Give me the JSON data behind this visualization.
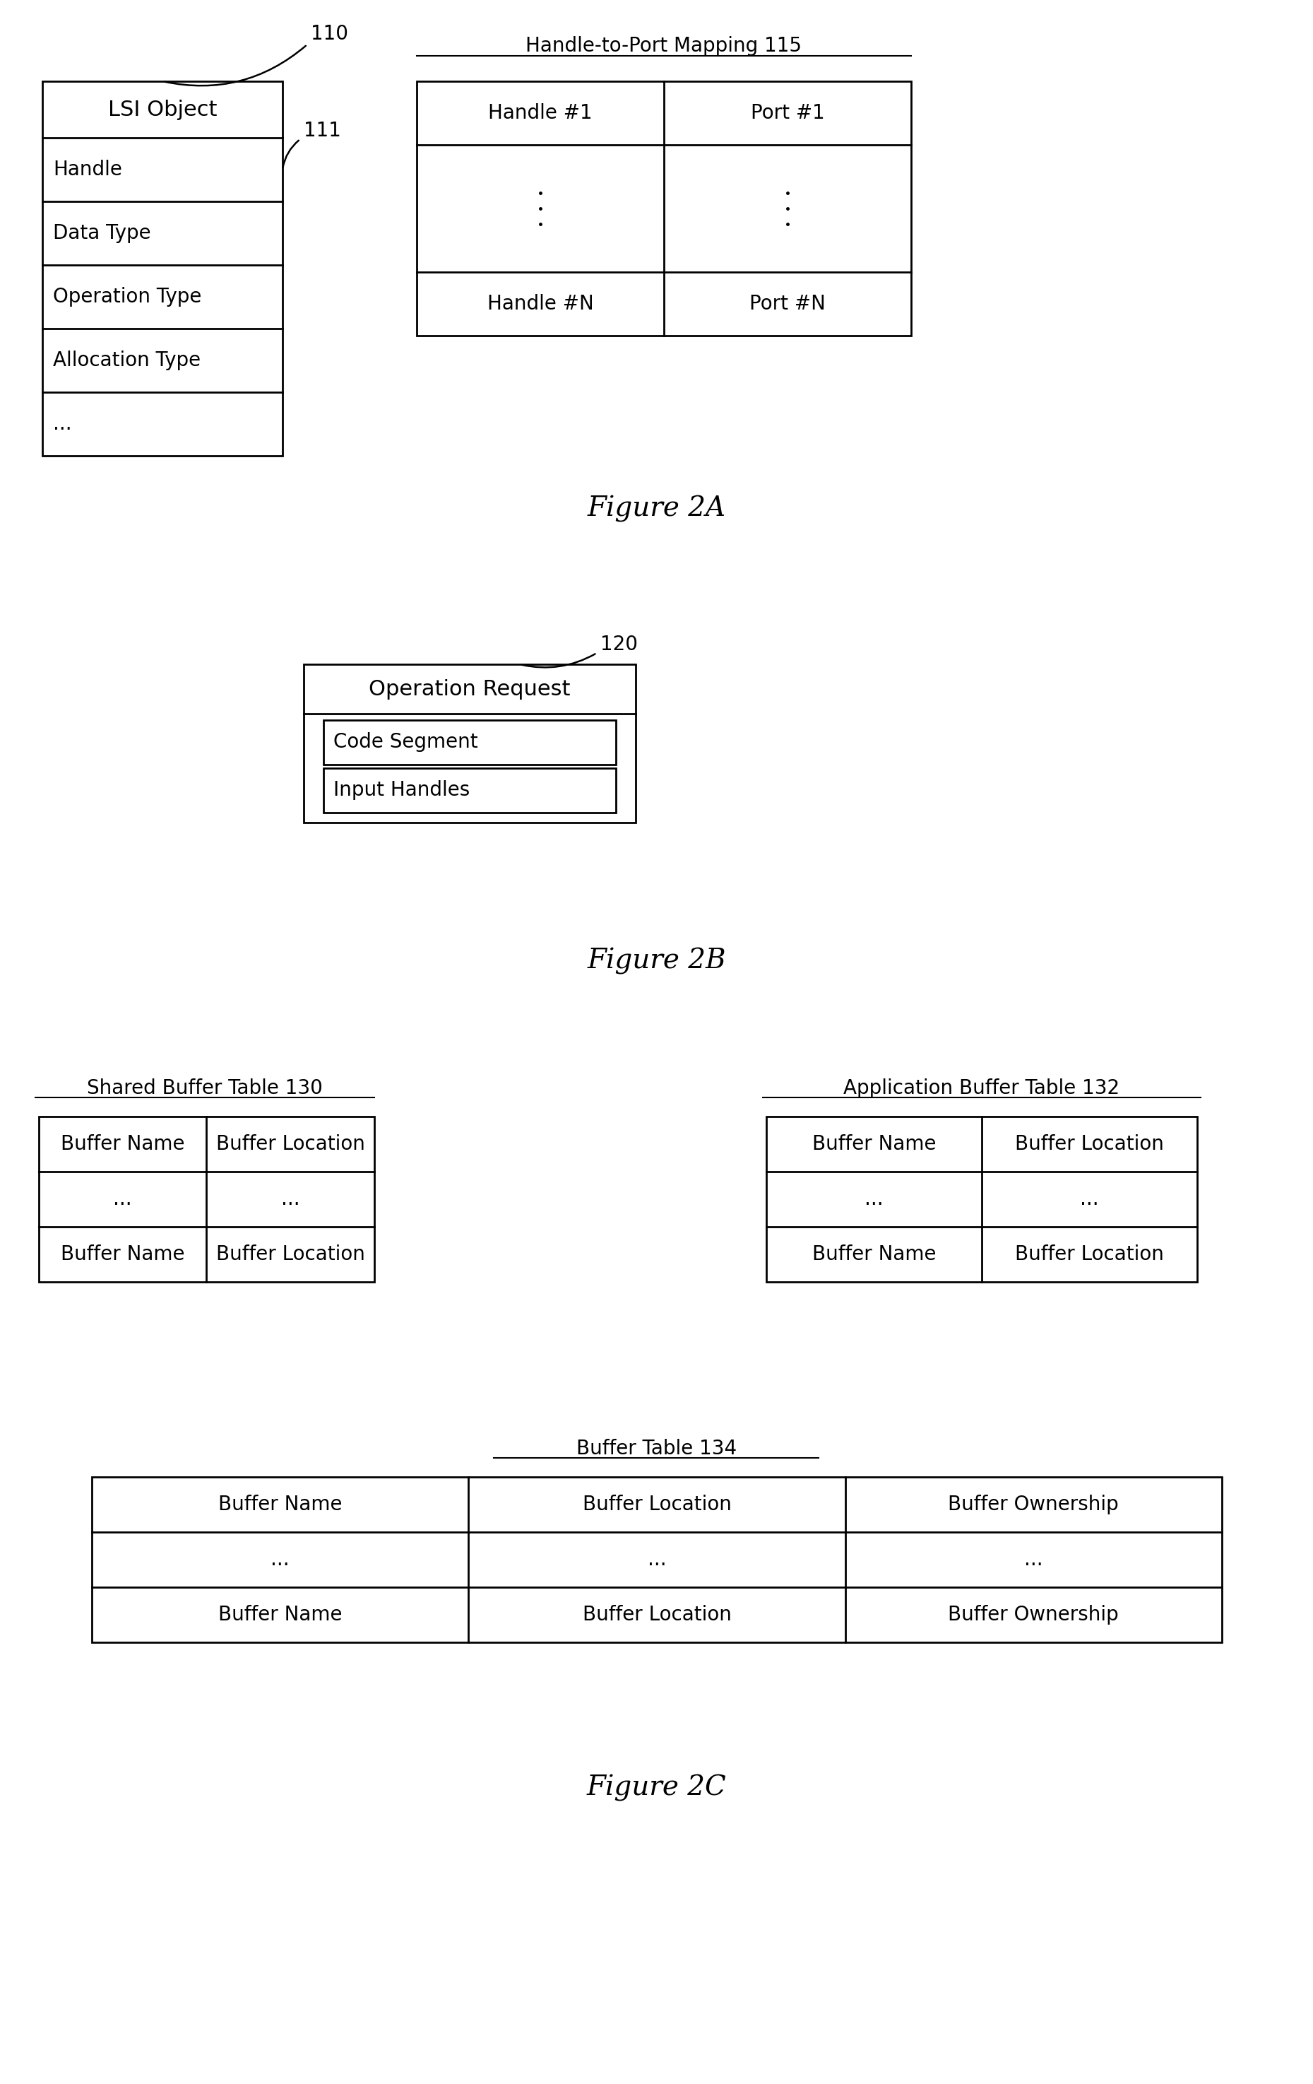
{
  "bg_color": "#ffffff",
  "fig_width": 18.59,
  "fig_height": 29.49,
  "fig2a_label": "Figure 2A",
  "fig2b_label": "Figure 2B",
  "fig2c_label": "Figure 2C",
  "lsi_title": "LSI Object",
  "lsi_ref": "110",
  "lsi_inner_ref": "111",
  "lsi_fields": [
    "Handle",
    "Data Type",
    "Operation Type",
    "Allocation Type",
    "..."
  ],
  "hpm_title": "Handle-to-Port Mapping 115",
  "hpm_row1": [
    "Handle #1",
    "Port #1"
  ],
  "hpm_rowN": [
    "Handle #N",
    "Port #N"
  ],
  "op_req_ref": "120",
  "op_req_title": "Operation Request",
  "op_req_fields": [
    "Code Segment",
    "Input Handles"
  ],
  "sbt_title": "Shared Buffer Table 130",
  "sbt_cols": [
    "Buffer Name",
    "Buffer Location"
  ],
  "sbt_row": [
    "Buffer Name",
    "Buffer Location"
  ],
  "abt_title": "Application Buffer Table 132",
  "abt_cols": [
    "Buffer Name",
    "Buffer Location"
  ],
  "abt_row": [
    "Buffer Name",
    "Buffer Location"
  ],
  "bt_title": "Buffer Table 134",
  "bt_cols": [
    "Buffer Name",
    "Buffer Location",
    "Buffer Ownership"
  ],
  "bt_row": [
    "Buffer Name",
    "Buffer Location",
    "Buffer Ownership"
  ]
}
